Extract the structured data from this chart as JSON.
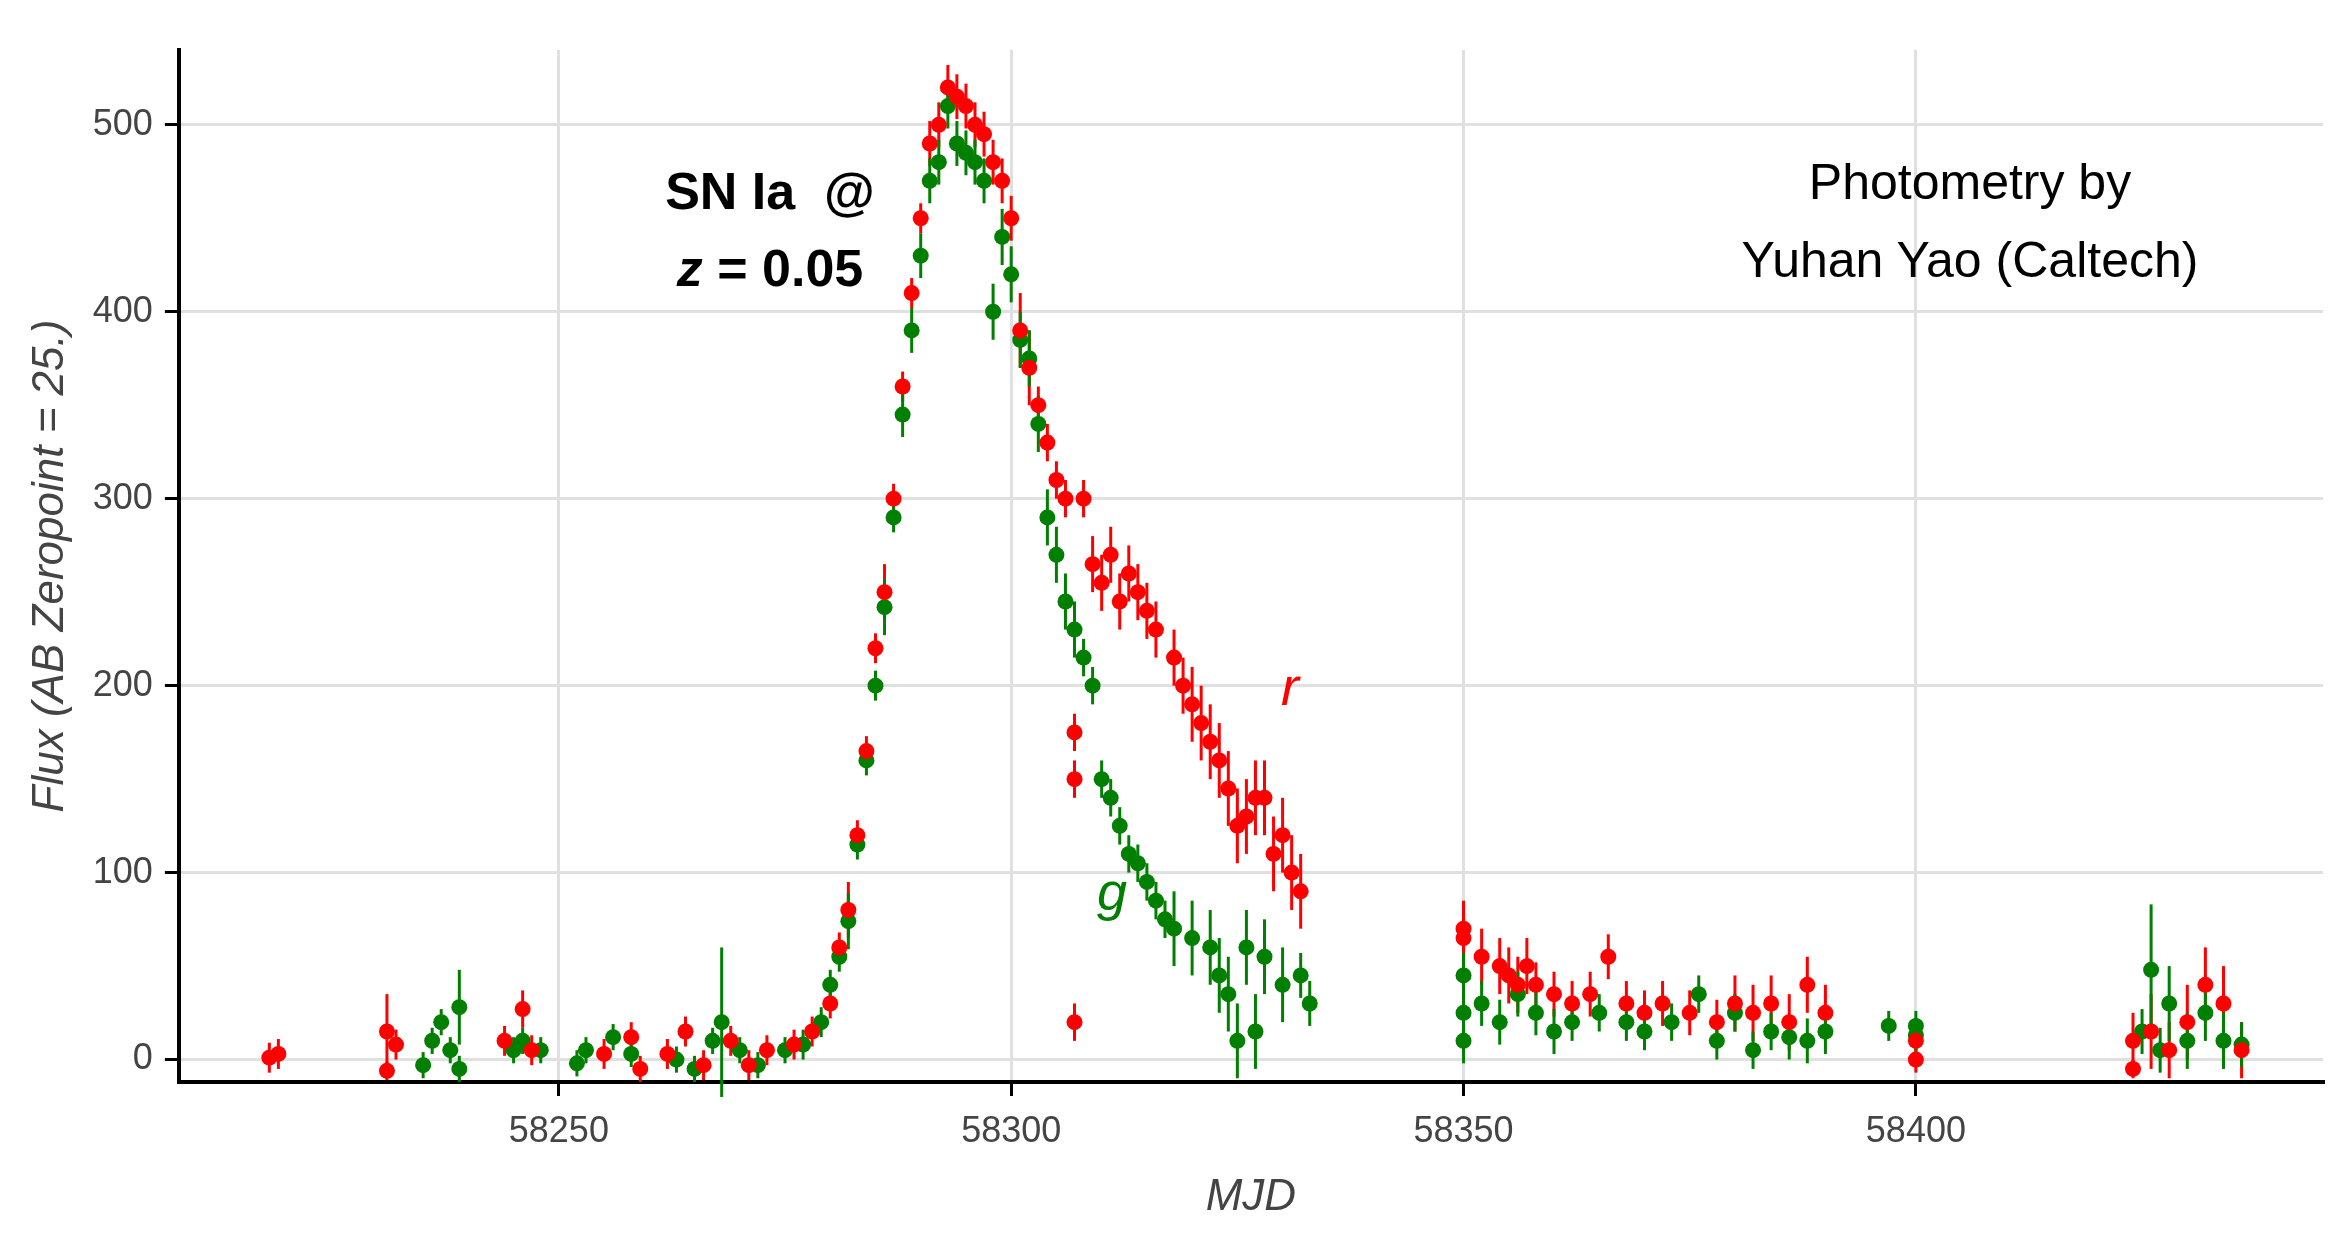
{
  "chart_data": {
    "type": "scatter",
    "xlabel": "MJD",
    "ylabel": "Flux (AB Zeropoint = 25.)",
    "xlim": [
      58208,
      58445
    ],
    "ylim": [
      -12,
      540
    ],
    "xticks": [
      58250,
      58300,
      58350,
      58400
    ],
    "yticks": [
      0,
      100,
      200,
      300,
      400,
      500
    ],
    "grid": true,
    "legend": false,
    "marker": "circle",
    "annotations": [
      "SN Ia  @",
      "z = 0.05",
      "Photometry by\nYuhan Yao (Caltech)"
    ],
    "series": [
      {
        "name": "r",
        "color": "#ff0000",
        "x": [
          58218,
          58219,
          58231,
          58231,
          58232,
          58244,
          58246,
          58247,
          58255,
          58258,
          58259,
          58262,
          58264,
          58266,
          58269,
          58271,
          58273,
          58276,
          58278,
          58280,
          58281,
          58282,
          58283,
          58284,
          58285,
          58286,
          58287,
          58288,
          58289,
          58290,
          58291,
          58292,
          58293,
          58294,
          58295,
          58296,
          58297,
          58298,
          58299,
          58300,
          58301,
          58302,
          58303,
          58304,
          58305,
          58306,
          58307,
          58307,
          58307,
          58308,
          58309,
          58310,
          58311,
          58312,
          58313,
          58314,
          58315,
          58316,
          58318,
          58319,
          58320,
          58321,
          58322,
          58323,
          58324,
          58325,
          58326,
          58327,
          58328,
          58329,
          58330,
          58331,
          58332,
          58350,
          58350,
          58352,
          58354,
          58355,
          58356,
          58357,
          58358,
          58360,
          58362,
          58364,
          58366,
          58368,
          58370,
          58372,
          58375,
          58378,
          58380,
          58382,
          58384,
          58386,
          58388,
          58390,
          58400,
          58400,
          58424,
          58424,
          58426,
          58428,
          58430,
          58432,
          58434,
          58436
        ],
        "values": [
          1,
          3,
          -6,
          15,
          8,
          10,
          27,
          5,
          3,
          12,
          -5,
          3,
          15,
          -3,
          10,
          -3,
          5,
          8,
          15,
          30,
          60,
          80,
          120,
          165,
          220,
          250,
          300,
          360,
          410,
          450,
          490,
          500,
          520,
          515,
          510,
          500,
          495,
          480,
          470,
          450,
          390,
          370,
          350,
          330,
          310,
          300,
          175,
          150,
          20,
          300,
          265,
          255,
          270,
          245,
          260,
          250,
          240,
          230,
          215,
          200,
          190,
          180,
          170,
          160,
          145,
          125,
          130,
          140,
          140,
          110,
          120,
          100,
          90,
          65,
          70,
          55,
          50,
          45,
          40,
          50,
          40,
          35,
          30,
          35,
          55,
          30,
          25,
          30,
          25,
          20,
          30,
          25,
          30,
          20,
          40,
          25,
          10,
          0,
          10,
          -5,
          15,
          5,
          20,
          40,
          30,
          5
        ],
        "errors": [
          8,
          8,
          5,
          20,
          8,
          8,
          10,
          8,
          8,
          8,
          7,
          8,
          8,
          8,
          8,
          8,
          8,
          8,
          8,
          8,
          8,
          15,
          8,
          8,
          8,
          15,
          8,
          8,
          8,
          8,
          12,
          12,
          12,
          12,
          12,
          12,
          12,
          12,
          12,
          12,
          20,
          20,
          10,
          10,
          10,
          10,
          10,
          10,
          10,
          10,
          15,
          15,
          15,
          15,
          15,
          15,
          15,
          15,
          15,
          15,
          20,
          20,
          20,
          20,
          20,
          20,
          20,
          20,
          20,
          20,
          20,
          20,
          20,
          15,
          15,
          15,
          15,
          15,
          15,
          15,
          12,
          12,
          12,
          12,
          12,
          12,
          12,
          12,
          12,
          12,
          15,
          15,
          15,
          15,
          15,
          15,
          10,
          7,
          15,
          5,
          20,
          15,
          20,
          20,
          20,
          15
        ]
      },
      {
        "name": "g",
        "color": "#007f00",
        "x": [
          58235,
          58236,
          58237,
          58238,
          58239,
          58239,
          58245,
          58246,
          58248,
          58252,
          58253,
          58256,
          58258,
          58263,
          58265,
          58267,
          58268,
          58270,
          58272,
          58275,
          58277,
          58279,
          58280,
          58281,
          58282,
          58283,
          58284,
          58285,
          58286,
          58287,
          58288,
          58289,
          58290,
          58291,
          58292,
          58293,
          58294,
          58295,
          58296,
          58297,
          58298,
          58299,
          58300,
          58301,
          58302,
          58303,
          58304,
          58305,
          58306,
          58307,
          58308,
          58309,
          58310,
          58311,
          58312,
          58313,
          58314,
          58315,
          58316,
          58317,
          58318,
          58320,
          58322,
          58323,
          58324,
          58325,
          58326,
          58327,
          58328,
          58330,
          58332,
          58333,
          58350,
          58350,
          58350,
          58352,
          58354,
          58356,
          58358,
          58360,
          58362,
          58365,
          58368,
          58370,
          58373,
          58376,
          58378,
          58380,
          58382,
          58384,
          58386,
          58388,
          58390,
          58397,
          58400,
          58400,
          58425,
          58426,
          58427,
          58428,
          58430,
          58432,
          58434,
          58436
        ],
        "values": [
          -3,
          10,
          20,
          5,
          28,
          -5,
          5,
          10,
          5,
          -2,
          5,
          12,
          3,
          0,
          -5,
          10,
          20,
          5,
          -3,
          5,
          8,
          20,
          40,
          55,
          74,
          115,
          160,
          200,
          242,
          290,
          345,
          390,
          430,
          470,
          480,
          510,
          490,
          485,
          480,
          470,
          400,
          440,
          420,
          385,
          375,
          340,
          290,
          270,
          245,
          230,
          215,
          200,
          150,
          140,
          125,
          110,
          105,
          95,
          85,
          75,
          70,
          65,
          60,
          45,
          35,
          10,
          60,
          15,
          55,
          40,
          45,
          30,
          45,
          25,
          10,
          30,
          20,
          35,
          25,
          15,
          20,
          25,
          20,
          15,
          20,
          35,
          10,
          25,
          5,
          15,
          12,
          10,
          15,
          18,
          18,
          13,
          15,
          48,
          5,
          30,
          10,
          25,
          10,
          8
        ],
        "errors": [
          7,
          7,
          7,
          7,
          20,
          7,
          7,
          7,
          7,
          7,
          7,
          7,
          7,
          7,
          7,
          7,
          40,
          7,
          7,
          7,
          8,
          8,
          8,
          8,
          15,
          8,
          8,
          8,
          15,
          8,
          12,
          12,
          12,
          12,
          12,
          12,
          12,
          12,
          12,
          12,
          15,
          15,
          15,
          15,
          15,
          15,
          15,
          15,
          15,
          15,
          10,
          10,
          10,
          10,
          10,
          10,
          10,
          10,
          10,
          10,
          20,
          20,
          20,
          20,
          20,
          20,
          20,
          20,
          20,
          20,
          12,
          12,
          12,
          12,
          12,
          12,
          12,
          12,
          12,
          12,
          10,
          10,
          10,
          10,
          10,
          10,
          10,
          10,
          10,
          10,
          12,
          12,
          12,
          8,
          8,
          8,
          12,
          35,
          12,
          20,
          15,
          15,
          15,
          12
        ]
      }
    ]
  }
}
